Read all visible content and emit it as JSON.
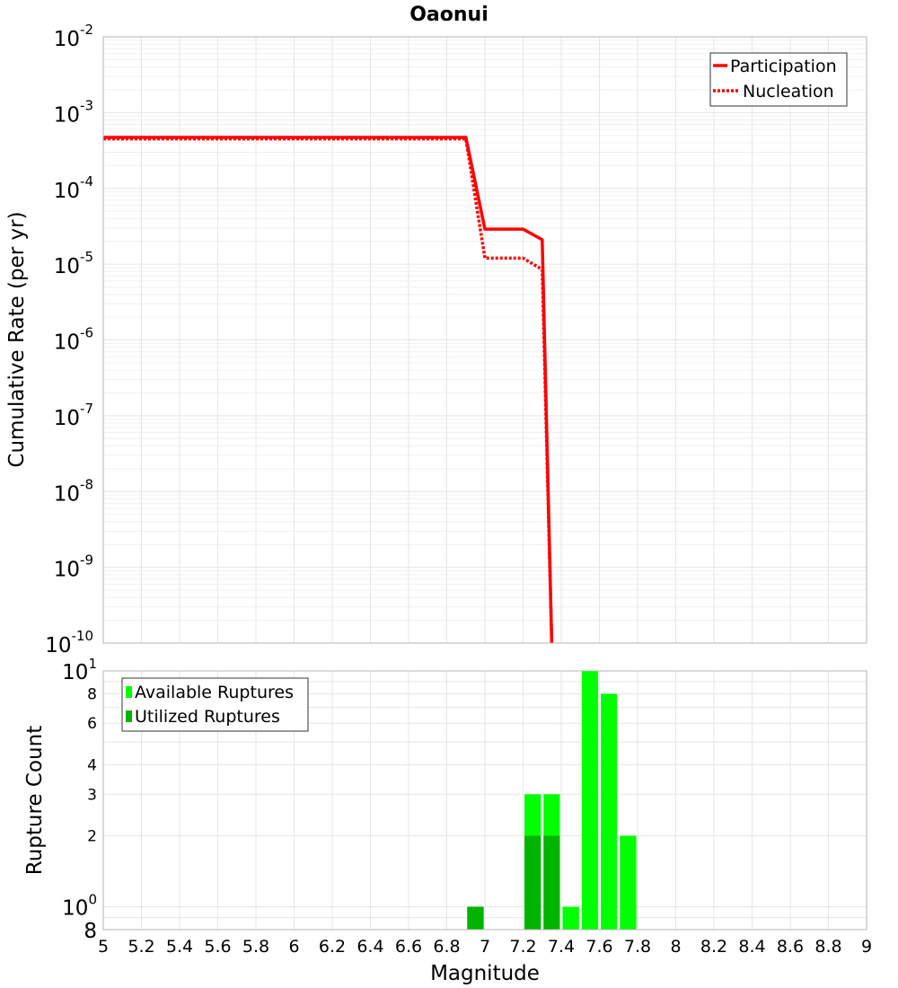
{
  "chart_data": [
    {
      "type": "line",
      "title": "Oaonui",
      "xlabel": "",
      "ylabel": "Cumulative Rate (per yr)",
      "yscale": "log",
      "xlim": [
        5,
        9
      ],
      "ylim": [
        1e-10,
        0.01
      ],
      "grid": true,
      "legend_position": "top-right",
      "y_tick_labels": [
        {
          "value": 0.01,
          "base": "10",
          "exp": "-2"
        },
        {
          "value": 0.001,
          "base": "10",
          "exp": "-3"
        },
        {
          "value": 0.0001,
          "base": "10",
          "exp": "-4"
        },
        {
          "value": 1e-05,
          "base": "10",
          "exp": "-5"
        },
        {
          "value": 1e-06,
          "base": "10",
          "exp": "-6"
        },
        {
          "value": 1e-07,
          "base": "10",
          "exp": "-7"
        },
        {
          "value": 1e-08,
          "base": "10",
          "exp": "-8"
        },
        {
          "value": 1e-09,
          "base": "10",
          "exp": "-9"
        },
        {
          "value": 1e-10,
          "base": "10",
          "exp": "-10"
        }
      ],
      "series": [
        {
          "name": "Participation",
          "color": "#ff0000",
          "style": "solid",
          "x": [
            5.0,
            6.9,
            7.0,
            7.2,
            7.3,
            7.35
          ],
          "y": [
            0.00047,
            0.00047,
            2.9e-05,
            2.9e-05,
            2.1e-05,
            1e-10
          ]
        },
        {
          "name": "Nucleation",
          "color": "#ff0000",
          "style": "dotted",
          "x": [
            5.0,
            6.9,
            7.0,
            7.2,
            7.3,
            7.35
          ],
          "y": [
            0.00045,
            0.00045,
            1.2e-05,
            1.2e-05,
            8.5e-06,
            1e-10
          ]
        }
      ]
    },
    {
      "type": "bar",
      "title": "",
      "xlabel": "Magnitude",
      "ylabel": "Rupture Count",
      "yscale": "log",
      "xlim": [
        5,
        9
      ],
      "ylim": [
        0.8,
        10
      ],
      "grid": true,
      "legend_position": "top-left",
      "bin_width": 0.1,
      "x_ticks": [
        "5",
        "5.2",
        "5.4",
        "5.6",
        "5.8",
        "6",
        "6.2",
        "6.4",
        "6.6",
        "6.8",
        "7",
        "7.2",
        "7.4",
        "7.6",
        "7.8",
        "8",
        "8.2",
        "8.4",
        "8.6",
        "8.8",
        "9"
      ],
      "y_tick_labels": [
        {
          "value": 10,
          "base": "10",
          "exp": "1",
          "big": true
        },
        {
          "value": 8,
          "base": "8",
          "exp": "",
          "big": false
        },
        {
          "value": 6,
          "base": "6",
          "exp": "",
          "big": false
        },
        {
          "value": 4,
          "base": "4",
          "exp": "",
          "big": false
        },
        {
          "value": 3,
          "base": "3",
          "exp": "",
          "big": false
        },
        {
          "value": 2,
          "base": "2",
          "exp": "",
          "big": false
        },
        {
          "value": 1,
          "base": "10",
          "exp": "0",
          "big": true
        },
        {
          "value": 0.8,
          "base": "8",
          "exp": "",
          "big": true
        }
      ],
      "series": [
        {
          "name": "Available Ruptures",
          "color": "#00ff00",
          "x": [
            6.95,
            7.25,
            7.35,
            7.45,
            7.55,
            7.65,
            7.75
          ],
          "values": [
            1,
            3,
            3,
            1,
            10,
            8,
            2
          ]
        },
        {
          "name": "Utilized Ruptures",
          "color": "#00b400",
          "x": [
            6.95,
            7.25,
            7.35
          ],
          "values": [
            1,
            2,
            2
          ]
        }
      ]
    }
  ]
}
